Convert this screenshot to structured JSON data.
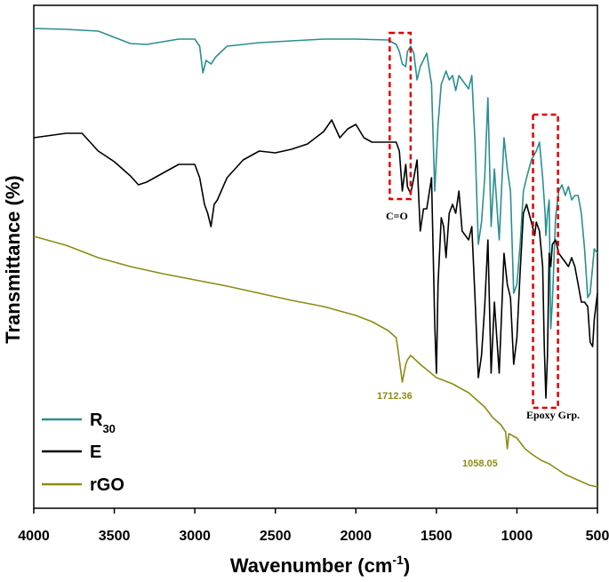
{
  "chart_data": {
    "type": "line",
    "xlabel": "Wavenumber (cm",
    "xlabel_sup": "-1",
    "xlabel_close": ")",
    "ylabel": "Transmittance (%)",
    "xlim": [
      4000,
      500
    ],
    "x_ticks": [
      4000,
      3500,
      3000,
      2500,
      2000,
      1500,
      1000,
      500
    ],
    "colors": {
      "R30": "#2a8f8f",
      "E": "#000000",
      "rGO": "#8c8c14",
      "highlight": "#e00000"
    },
    "legend": [
      {
        "series": "R30",
        "label": "R",
        "subscript": "30"
      },
      {
        "series": "E",
        "label": "E",
        "subscript": ""
      },
      {
        "series": "rGO",
        "label": "rGO",
        "subscript": ""
      }
    ],
    "annotations": {
      "carbonyl": "C=O",
      "epoxy": "Epoxy Grp.",
      "peak_1": "1712.36",
      "peak_2": "1058.05"
    },
    "highlight_boxes": [
      {
        "label": "C=O",
        "x_from": 1790,
        "x_to": 1660
      },
      {
        "label": "Epoxy Grp.",
        "x_from": 900,
        "x_to": 745
      }
    ],
    "series": [
      {
        "name": "R30",
        "points": [
          [
            4000,
            32
          ],
          [
            3800,
            33
          ],
          [
            3600,
            35
          ],
          [
            3500,
            42
          ],
          [
            3400,
            49
          ],
          [
            3300,
            50
          ],
          [
            3200,
            47
          ],
          [
            3100,
            44
          ],
          [
            3000,
            44
          ],
          [
            2970,
            52
          ],
          [
            2950,
            82
          ],
          [
            2930,
            68
          ],
          [
            2900,
            72
          ],
          [
            2870,
            64
          ],
          [
            2800,
            52
          ],
          [
            2600,
            48
          ],
          [
            2400,
            46
          ],
          [
            2200,
            44
          ],
          [
            2000,
            44
          ],
          [
            1800,
            45
          ],
          [
            1750,
            50
          ],
          [
            1730,
            58
          ],
          [
            1712,
            72
          ],
          [
            1690,
            75
          ],
          [
            1680,
            58
          ],
          [
            1660,
            52
          ],
          [
            1640,
            60
          ],
          [
            1620,
            90
          ],
          [
            1600,
            75
          ],
          [
            1560,
            60
          ],
          [
            1530,
            95
          ],
          [
            1510,
            215
          ],
          [
            1490,
            140
          ],
          [
            1470,
            95
          ],
          [
            1440,
            80
          ],
          [
            1420,
            90
          ],
          [
            1400,
            85
          ],
          [
            1380,
            102
          ],
          [
            1360,
            85
          ],
          [
            1340,
            90
          ],
          [
            1300,
            100
          ],
          [
            1280,
            85
          ],
          [
            1260,
            160
          ],
          [
            1240,
            275
          ],
          [
            1220,
            250
          ],
          [
            1200,
            200
          ],
          [
            1180,
            110
          ],
          [
            1160,
            255
          ],
          [
            1140,
            190
          ],
          [
            1110,
            270
          ],
          [
            1080,
            155
          ],
          [
            1060,
            190
          ],
          [
            1040,
            215
          ],
          [
            1020,
            330
          ],
          [
            1000,
            320
          ],
          [
            980,
            275
          ],
          [
            960,
            215
          ],
          [
            940,
            200
          ],
          [
            910,
            180
          ],
          [
            880,
            170
          ],
          [
            860,
            160
          ],
          [
            840,
            200
          ],
          [
            825,
            240
          ],
          [
            820,
            265
          ],
          [
            810,
            240
          ],
          [
            800,
            225
          ],
          [
            790,
            370
          ],
          [
            780,
            340
          ],
          [
            760,
            245
          ],
          [
            740,
            215
          ],
          [
            720,
            208
          ],
          [
            700,
            220
          ],
          [
            680,
            210
          ],
          [
            660,
            225
          ],
          [
            640,
            220
          ],
          [
            620,
            220
          ],
          [
            600,
            240
          ],
          [
            580,
            280
          ],
          [
            560,
            335
          ],
          [
            545,
            330
          ],
          [
            530,
            300
          ],
          [
            520,
            280
          ],
          [
            500,
            285
          ]
        ]
      },
      {
        "name": "E",
        "points": [
          [
            4000,
            155
          ],
          [
            3800,
            150
          ],
          [
            3700,
            150
          ],
          [
            3650,
            160
          ],
          [
            3600,
            170
          ],
          [
            3500,
            182
          ],
          [
            3400,
            198
          ],
          [
            3350,
            208
          ],
          [
            3300,
            205
          ],
          [
            3250,
            200
          ],
          [
            3200,
            195
          ],
          [
            3100,
            185
          ],
          [
            3000,
            185
          ],
          [
            2970,
            200
          ],
          [
            2940,
            230
          ],
          [
            2920,
            240
          ],
          [
            2900,
            255
          ],
          [
            2880,
            230
          ],
          [
            2860,
            225
          ],
          [
            2800,
            200
          ],
          [
            2700,
            180
          ],
          [
            2600,
            170
          ],
          [
            2500,
            172
          ],
          [
            2400,
            168
          ],
          [
            2300,
            162
          ],
          [
            2200,
            148
          ],
          [
            2150,
            135
          ],
          [
            2100,
            155
          ],
          [
            2050,
            145
          ],
          [
            2000,
            140
          ],
          [
            1950,
            155
          ],
          [
            1900,
            160
          ],
          [
            1800,
            160
          ],
          [
            1750,
            160
          ],
          [
            1730,
            170
          ],
          [
            1712,
            215
          ],
          [
            1690,
            185
          ],
          [
            1680,
            210
          ],
          [
            1660,
            218
          ],
          [
            1640,
            200
          ],
          [
            1620,
            180
          ],
          [
            1600,
            260
          ],
          [
            1580,
            235
          ],
          [
            1560,
            235
          ],
          [
            1530,
            200
          ],
          [
            1510,
            365
          ],
          [
            1500,
            420
          ],
          [
            1490,
            320
          ],
          [
            1470,
            245
          ],
          [
            1455,
            255
          ],
          [
            1440,
            290
          ],
          [
            1420,
            240
          ],
          [
            1400,
            230
          ],
          [
            1380,
            240
          ],
          [
            1360,
            215
          ],
          [
            1340,
            260
          ],
          [
            1300,
            270
          ],
          [
            1280,
            255
          ],
          [
            1260,
            335
          ],
          [
            1240,
            425
          ],
          [
            1220,
            400
          ],
          [
            1200,
            345
          ],
          [
            1180,
            270
          ],
          [
            1160,
            420
          ],
          [
            1140,
            340
          ],
          [
            1110,
            420
          ],
          [
            1080,
            285
          ],
          [
            1060,
            320
          ],
          [
            1040,
            335
          ],
          [
            1020,
            410
          ],
          [
            1000,
            380
          ],
          [
            980,
            305
          ],
          [
            960,
            240
          ],
          [
            940,
            230
          ],
          [
            910,
            250
          ],
          [
            890,
            265
          ],
          [
            880,
            250
          ],
          [
            860,
            260
          ],
          [
            840,
            300
          ],
          [
            830,
            390
          ],
          [
            820,
            448
          ],
          [
            810,
            400
          ],
          [
            800,
            285
          ],
          [
            790,
            300
          ],
          [
            780,
            275
          ],
          [
            760,
            270
          ],
          [
            740,
            285
          ],
          [
            720,
            290
          ],
          [
            700,
            295
          ],
          [
            680,
            300
          ],
          [
            660,
            290
          ],
          [
            640,
            300
          ],
          [
            620,
            320
          ],
          [
            600,
            340
          ],
          [
            580,
            340
          ],
          [
            560,
            345
          ],
          [
            545,
            385
          ],
          [
            530,
            390
          ],
          [
            520,
            360
          ],
          [
            500,
            330
          ]
        ]
      },
      {
        "name": "rGO",
        "points": [
          [
            4000,
            266
          ],
          [
            3800,
            276
          ],
          [
            3600,
            290
          ],
          [
            3400,
            300
          ],
          [
            3200,
            308
          ],
          [
            3000,
            315
          ],
          [
            2800,
            322
          ],
          [
            2600,
            330
          ],
          [
            2400,
            338
          ],
          [
            2200,
            345
          ],
          [
            2000,
            355
          ],
          [
            1900,
            362
          ],
          [
            1800,
            372
          ],
          [
            1750,
            380
          ],
          [
            1740,
            392
          ],
          [
            1712,
            430
          ],
          [
            1690,
            410
          ],
          [
            1680,
            405
          ],
          [
            1660,
            400
          ],
          [
            1600,
            410
          ],
          [
            1500,
            425
          ],
          [
            1400,
            432
          ],
          [
            1300,
            442
          ],
          [
            1250,
            450
          ],
          [
            1200,
            458
          ],
          [
            1150,
            470
          ],
          [
            1100,
            478
          ],
          [
            1070,
            486
          ],
          [
            1060,
            505
          ],
          [
            1050,
            488
          ],
          [
            1000,
            493
          ],
          [
            950,
            505
          ],
          [
            900,
            512
          ],
          [
            850,
            518
          ],
          [
            800,
            522
          ],
          [
            750,
            528
          ],
          [
            700,
            534
          ],
          [
            650,
            538
          ],
          [
            600,
            542
          ],
          [
            550,
            546
          ],
          [
            500,
            548
          ]
        ]
      }
    ]
  }
}
